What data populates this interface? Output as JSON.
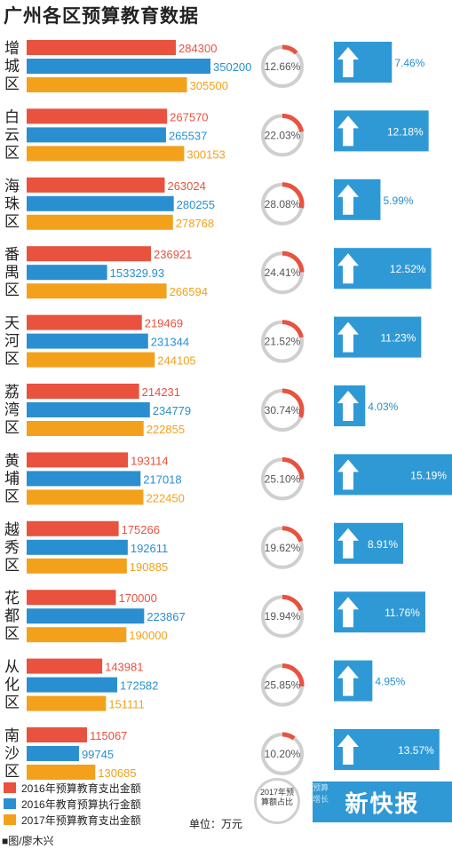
{
  "title": "广州各区预算教育数据",
  "colors": {
    "spend2016": "#e8523f",
    "exec2016": "#2a8fd0",
    "spend2017": "#f3a11b",
    "ring_track": "#cfcfcf",
    "ring_fill": "#e8523f",
    "growth_box": "#2f99d6"
  },
  "legend": [
    "2016年预算教育支出金额",
    "2016年教育预算执行金额",
    "2017年预算教育支出金额"
  ],
  "unit": "单位：万元",
  "source": "■图/廖木兴",
  "ring_legend": "2017年预算额占比",
  "logo_text": "新快报",
  "logo_side_text": "预算增长",
  "chart_data": {
    "type": "bar",
    "orientation": "horizontal",
    "categories": [
      "增城区",
      "白云区",
      "海珠区",
      "番禺区",
      "天河区",
      "荔湾区",
      "黄埔区",
      "越秀区",
      "花都区",
      "从化区",
      "南沙区"
    ],
    "series": [
      {
        "name": "2016年预算教育支出金额",
        "values": [
          284300,
          267570,
          263024,
          236921,
          219469,
          214231,
          193114,
          175266,
          170000,
          143981,
          115067
        ]
      },
      {
        "name": "2016年教育预算执行金额",
        "values": [
          350200,
          265537,
          280255,
          153329.93,
          231344,
          234779,
          217018,
          192611,
          223867,
          172582,
          99745
        ]
      },
      {
        "name": "2017年预算教育支出金额",
        "values": [
          305500,
          300153,
          278768,
          266594,
          244105,
          222855,
          222450,
          190885,
          190000,
          151111,
          130685
        ]
      }
    ],
    "labels": {
      "spend2016": [
        "284300",
        "267570",
        "263024",
        "236921",
        "219469",
        "214231",
        "193114",
        "175266",
        "170000",
        "143981",
        "115067"
      ],
      "exec2016": [
        "350200",
        "265537",
        "280255",
        "153329.93",
        "231344",
        "234779",
        "217018",
        "192611",
        "223867",
        "172582",
        "99745"
      ],
      "spend2017": [
        "305500",
        "300153",
        "278768",
        "266594",
        "244105",
        "222855",
        "222450",
        "190885",
        "190000",
        "151111",
        "130685"
      ]
    },
    "share_2017": [
      12.66,
      22.03,
      28.08,
      24.41,
      21.52,
      30.74,
      25.1,
      19.62,
      19.94,
      25.85,
      10.2
    ],
    "share_labels": [
      "12.66%",
      "22.03%",
      "28.08%",
      "24.41%",
      "21.52%",
      "30.74%",
      "25.10%",
      "19.62%",
      "19.94%",
      "25.85%",
      "10.20%"
    ],
    "growth": [
      7.46,
      12.18,
      5.99,
      12.52,
      11.23,
      4.03,
      15.19,
      8.91,
      11.76,
      4.95,
      13.57
    ],
    "growth_labels": [
      "7.46%",
      "12.18%",
      "5.99%",
      "12.52%",
      "11.23%",
      "4.03%",
      "15.19%",
      "8.91%",
      "11.76%",
      "4.95%",
      "13.57%"
    ]
  }
}
